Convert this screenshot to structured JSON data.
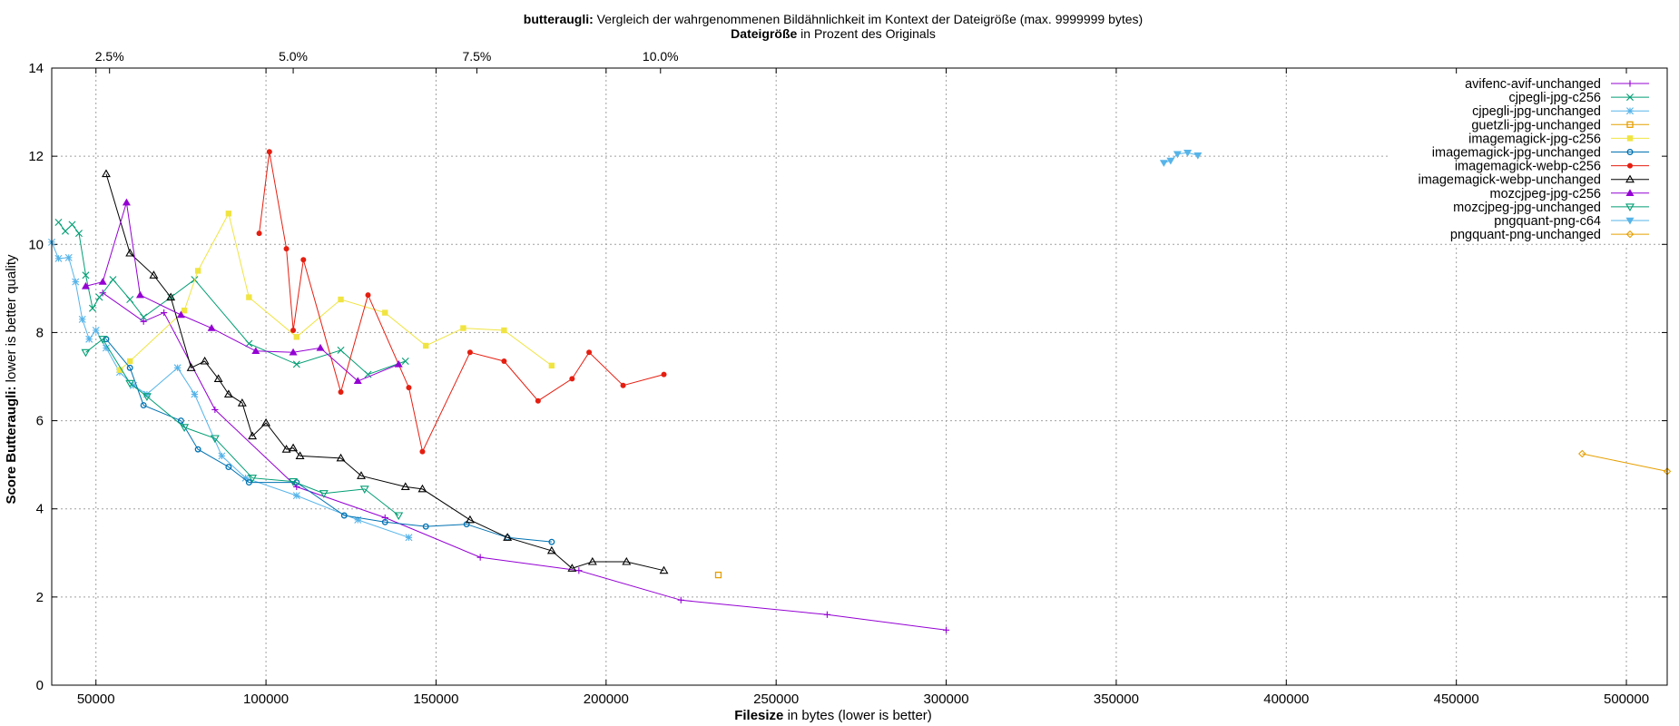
{
  "title": {
    "bold": "butteraugli:",
    "text": " Vergleich der wahrgenommenen Bildähnlichkeit im Kontext der Dateigröße (max. 9999999 bytes)"
  },
  "x2title": {
    "bold": "Dateigröße",
    "text": " in Prozent des Originals"
  },
  "xlabel": {
    "bold": "Filesize",
    "text": " in bytes (lower is better)"
  },
  "ylabel": {
    "bold": "Score Butteraugli:",
    "text": " lower is better quality"
  },
  "chart_data": {
    "type": "line",
    "xlim": [
      37000,
      512000
    ],
    "ylim": [
      0,
      14
    ],
    "xticks": [
      50000,
      100000,
      150000,
      200000,
      250000,
      300000,
      350000,
      400000,
      450000,
      500000
    ],
    "xtick_labels": [
      "50000",
      "100000",
      "150000",
      "200000",
      "250000",
      "300000",
      "350000",
      "400000",
      "450000",
      "500000"
    ],
    "yticks": [
      0,
      2,
      4,
      6,
      8,
      10,
      12,
      14
    ],
    "ytick_labels": [
      "0",
      "2",
      "4",
      "6",
      "8",
      "10",
      "12",
      "14"
    ],
    "x2ticks": [
      2.5,
      5.0,
      7.5,
      10.0
    ],
    "x2tick_labels": [
      "2.5%",
      "5.0%",
      "7.5%",
      "10.0%"
    ],
    "x2_bytes_per_percent": 21600,
    "grid": true,
    "legend_position": "top-right",
    "series": [
      {
        "name": "avifenc-avif-unchanged",
        "color": "#9400d3",
        "marker": "plus",
        "points": [
          [
            52000,
            8.9
          ],
          [
            64000,
            8.25
          ],
          [
            70000,
            8.45
          ],
          [
            85000,
            6.25
          ],
          [
            109000,
            4.5
          ],
          [
            135000,
            3.8
          ],
          [
            163000,
            2.9
          ],
          [
            192000,
            2.6
          ],
          [
            222000,
            1.93
          ],
          [
            265000,
            1.6
          ],
          [
            300000,
            1.25
          ]
        ]
      },
      {
        "name": "cjpegli-jpg-c256",
        "color": "#009e73",
        "marker": "x",
        "points": [
          [
            39000,
            10.5
          ],
          [
            41000,
            10.3
          ],
          [
            43000,
            10.45
          ],
          [
            45000,
            10.25
          ],
          [
            47000,
            9.3
          ],
          [
            49000,
            8.55
          ],
          [
            51000,
            8.8
          ],
          [
            55000,
            9.2
          ],
          [
            60000,
            8.75
          ],
          [
            64000,
            8.35
          ],
          [
            72000,
            8.8
          ],
          [
            79000,
            9.2
          ],
          [
            95000,
            7.75
          ],
          [
            109000,
            7.28
          ],
          [
            122000,
            7.6
          ],
          [
            130000,
            7.05
          ],
          [
            141000,
            7.35
          ]
        ]
      },
      {
        "name": "cjpegli-jpg-unchanged",
        "color": "#56b4e9",
        "marker": "star",
        "points": [
          [
            37000,
            10.05
          ],
          [
            39000,
            9.68
          ],
          [
            42000,
            9.7
          ],
          [
            44000,
            9.15
          ],
          [
            46000,
            8.3
          ],
          [
            48000,
            7.85
          ],
          [
            50000,
            8.05
          ],
          [
            53000,
            7.65
          ],
          [
            57000,
            7.1
          ],
          [
            61000,
            6.8
          ],
          [
            65000,
            6.6
          ],
          [
            74000,
            7.2
          ],
          [
            79000,
            6.6
          ],
          [
            87000,
            5.2
          ],
          [
            94000,
            4.7
          ],
          [
            109000,
            4.3
          ],
          [
            127000,
            3.75
          ],
          [
            142000,
            3.35
          ]
        ]
      },
      {
        "name": "guetzli-jpg-unchanged",
        "color": "#e69f00",
        "marker": "square-open",
        "points": [
          [
            233000,
            2.5
          ]
        ]
      },
      {
        "name": "imagemagick-jpg-c256",
        "color": "#f0e442",
        "marker": "square",
        "points": [
          [
            57000,
            7.15
          ],
          [
            60000,
            7.35
          ],
          [
            76000,
            8.5
          ],
          [
            80000,
            9.4
          ],
          [
            89000,
            10.7
          ],
          [
            95000,
            8.8
          ],
          [
            109000,
            7.9
          ],
          [
            122000,
            8.75
          ],
          [
            135000,
            8.45
          ],
          [
            147000,
            7.7
          ],
          [
            158000,
            8.1
          ],
          [
            170000,
            8.05
          ],
          [
            184000,
            7.25
          ]
        ]
      },
      {
        "name": "imagemagick-jpg-unchanged",
        "color": "#0072b2",
        "marker": "circle",
        "points": [
          [
            53000,
            7.85
          ],
          [
            60000,
            7.2
          ],
          [
            64000,
            6.35
          ],
          [
            75000,
            6.0
          ],
          [
            80000,
            5.35
          ],
          [
            89000,
            4.95
          ],
          [
            95000,
            4.6
          ],
          [
            109000,
            4.6
          ],
          [
            123000,
            3.85
          ],
          [
            135000,
            3.7
          ],
          [
            147000,
            3.6
          ],
          [
            159000,
            3.65
          ],
          [
            171000,
            3.35
          ],
          [
            184000,
            3.25
          ]
        ]
      },
      {
        "name": "imagemagick-webp-c256",
        "color": "#e51e10",
        "marker": "dot",
        "points": [
          [
            98000,
            10.25
          ],
          [
            101000,
            12.1
          ],
          [
            106000,
            9.9
          ],
          [
            108000,
            8.05
          ],
          [
            111000,
            9.65
          ],
          [
            122000,
            6.65
          ],
          [
            130000,
            8.85
          ],
          [
            142000,
            6.75
          ],
          [
            146000,
            5.3
          ],
          [
            160000,
            7.55
          ],
          [
            170000,
            7.35
          ],
          [
            180000,
            6.45
          ],
          [
            190000,
            6.95
          ],
          [
            195000,
            7.55
          ],
          [
            205000,
            6.8
          ],
          [
            217000,
            7.05
          ]
        ]
      },
      {
        "name": "imagemagick-webp-unchanged",
        "color": "#000000",
        "marker": "triangle-open",
        "points": [
          [
            53000,
            11.6
          ],
          [
            60000,
            9.8
          ],
          [
            67000,
            9.3
          ],
          [
            72000,
            8.8
          ],
          [
            78000,
            7.2
          ],
          [
            82000,
            7.35
          ],
          [
            86000,
            6.95
          ],
          [
            89000,
            6.6
          ],
          [
            93000,
            6.4
          ],
          [
            96000,
            5.65
          ],
          [
            100000,
            5.95
          ],
          [
            106000,
            5.35
          ],
          [
            108000,
            5.38
          ],
          [
            110000,
            5.2
          ],
          [
            122000,
            5.15
          ],
          [
            128000,
            4.75
          ],
          [
            141000,
            4.5
          ],
          [
            146000,
            4.45
          ],
          [
            160000,
            3.75
          ],
          [
            171000,
            3.35
          ],
          [
            184000,
            3.05
          ],
          [
            190000,
            2.65
          ],
          [
            196000,
            2.8
          ],
          [
            206000,
            2.8
          ],
          [
            217000,
            2.6
          ]
        ]
      },
      {
        "name": "mozcjpeg-jpg-c256",
        "color": "#9400d3",
        "marker": "triangle",
        "points": [
          [
            47000,
            9.05
          ],
          [
            52000,
            9.15
          ],
          [
            59000,
            10.95
          ],
          [
            63000,
            8.85
          ],
          [
            75000,
            8.4
          ],
          [
            84000,
            8.1
          ],
          [
            97000,
            7.58
          ],
          [
            108000,
            7.55
          ],
          [
            116000,
            7.65
          ],
          [
            127000,
            6.9
          ],
          [
            139000,
            7.28
          ]
        ]
      },
      {
        "name": "mozcjpeg-jpg-unchanged",
        "color": "#009e73",
        "marker": "triangle-down-open",
        "points": [
          [
            47000,
            7.55
          ],
          [
            52000,
            7.85
          ],
          [
            60000,
            6.85
          ],
          [
            65000,
            6.55
          ],
          [
            76000,
            5.85
          ],
          [
            85000,
            5.6
          ],
          [
            96000,
            4.7
          ],
          [
            108000,
            4.62
          ],
          [
            117000,
            4.35
          ],
          [
            129000,
            4.45
          ],
          [
            139000,
            3.85
          ]
        ]
      },
      {
        "name": "pngquant-png-c64",
        "color": "#56b4e9",
        "marker": "triangle-down",
        "points": [
          [
            364000,
            11.85
          ],
          [
            366000,
            11.9
          ],
          [
            368000,
            12.05
          ],
          [
            371000,
            12.08
          ],
          [
            374000,
            12.02
          ]
        ]
      },
      {
        "name": "pngquant-png-unchanged",
        "color": "#e69f00",
        "marker": "diamond-open",
        "points": [
          [
            487000,
            5.25
          ],
          [
            512000,
            4.85
          ]
        ]
      }
    ]
  }
}
